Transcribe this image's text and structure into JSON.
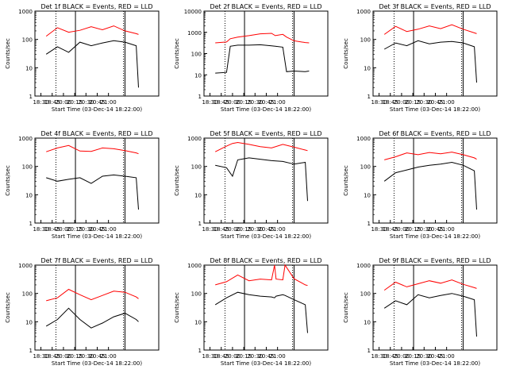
{
  "figure": {
    "ylabel": "Counts/sec",
    "xlabel": "Start Time (03-Dec-14 18:22:00)",
    "xticks": [
      "18:30",
      "18:45",
      "20:00",
      "20:15",
      "20:30",
      "20:45",
      "21:00"
    ],
    "yticks": [
      "1",
      "10",
      "100",
      "1000"
    ],
    "colors": {
      "events": "#000000",
      "lld": "#ff0000"
    }
  },
  "chart_data": [
    {
      "type": "line",
      "title": "Det 1f BLACK = Events, RED = LLD",
      "ylabel": "Counts/sec",
      "xlabel": "Start Time (03-Dec-14 18:22:00)",
      "yscale": "log",
      "ylim": [
        1,
        1000
      ],
      "x_minutes": [
        15,
        30,
        45,
        60,
        75,
        90,
        105,
        120,
        135,
        138
      ],
      "series": [
        {
          "name": "Events",
          "color": "#000000",
          "values": [
            30,
            55,
            35,
            80,
            60,
            75,
            90,
            80,
            60,
            2
          ]
        },
        {
          "name": "LLD",
          "color": "#ff0000",
          "values": [
            130,
            260,
            180,
            210,
            280,
            220,
            300,
            200,
            160,
            150
          ]
        }
      ]
    },
    {
      "type": "line",
      "title": "Det 2f BLACK = Events, RED = LLD",
      "ylabel": "Counts/sec",
      "xlabel": "Start Time (03-Dec-14 18:22:00)",
      "yscale": "log",
      "ylim": [
        1,
        10000
      ],
      "x_minutes": [
        15,
        30,
        35,
        45,
        60,
        75,
        90,
        95,
        105,
        110,
        120,
        135,
        140
      ],
      "series": [
        {
          "name": "Events",
          "color": "#000000",
          "values": [
            12,
            13,
            220,
            250,
            250,
            260,
            230,
            220,
            200,
            14,
            15,
            14,
            15
          ]
        },
        {
          "name": "LLD",
          "color": "#ff0000",
          "values": [
            320,
            350,
            500,
            600,
            700,
            850,
            900,
            700,
            800,
            600,
            400,
            330,
            320
          ]
        }
      ]
    },
    {
      "type": "line",
      "title": "Det 3f BLACK = Events, RED = LLD",
      "ylabel": "Counts/sec",
      "xlabel": "Start Time (03-Dec-14 18:22:00)",
      "yscale": "log",
      "ylim": [
        1,
        1000
      ],
      "x_minutes": [
        15,
        30,
        45,
        60,
        75,
        90,
        105,
        120,
        135,
        138
      ],
      "series": [
        {
          "name": "Events",
          "color": "#000000",
          "values": [
            45,
            75,
            60,
            90,
            70,
            80,
            85,
            75,
            55,
            3
          ]
        },
        {
          "name": "LLD",
          "color": "#ff0000",
          "values": [
            150,
            290,
            190,
            230,
            300,
            240,
            330,
            230,
            170,
            160
          ]
        }
      ]
    },
    {
      "type": "line",
      "title": "Det 4f BLACK = Events, RED = LLD",
      "ylabel": "Counts/sec",
      "xlabel": "Start Time (03-Dec-14 18:22:00)",
      "yscale": "log",
      "ylim": [
        1,
        1000
      ],
      "x_minutes": [
        15,
        30,
        45,
        60,
        75,
        90,
        105,
        120,
        135,
        138
      ],
      "series": [
        {
          "name": "Events",
          "color": "#000000",
          "values": [
            40,
            30,
            35,
            40,
            25,
            45,
            50,
            45,
            40,
            3
          ]
        },
        {
          "name": "LLD",
          "color": "#ff0000",
          "values": [
            330,
            450,
            550,
            350,
            340,
            450,
            420,
            360,
            300,
            280
          ]
        }
      ]
    },
    {
      "type": "line",
      "title": "Det 5f BLACK = Events, RED = LLD",
      "ylabel": "Counts/sec",
      "xlabel": "Start Time (03-Dec-14 18:22:00)",
      "yscale": "log",
      "ylim": [
        1,
        1000
      ],
      "x_minutes": [
        15,
        30,
        38,
        45,
        60,
        75,
        90,
        105,
        120,
        135,
        138
      ],
      "series": [
        {
          "name": "Events",
          "color": "#000000",
          "values": [
            110,
            90,
            45,
            170,
            200,
            180,
            160,
            150,
            120,
            140,
            6
          ]
        },
        {
          "name": "LLD",
          "color": "#ff0000",
          "values": [
            330,
            520,
            650,
            700,
            600,
            500,
            450,
            600,
            480,
            380,
            360
          ]
        }
      ]
    },
    {
      "type": "line",
      "title": "Det 6f BLACK = Events, RED = LLD",
      "ylabel": "Counts/sec",
      "xlabel": "Start Time (03-Dec-14 18:22:00)",
      "yscale": "log",
      "ylim": [
        1,
        1000
      ],
      "x_minutes": [
        15,
        30,
        45,
        60,
        75,
        90,
        105,
        120,
        135,
        138
      ],
      "series": [
        {
          "name": "Events",
          "color": "#000000",
          "values": [
            30,
            60,
            75,
            95,
            110,
            120,
            140,
            110,
            70,
            3
          ]
        },
        {
          "name": "LLD",
          "color": "#ff0000",
          "values": [
            170,
            220,
            300,
            260,
            310,
            280,
            320,
            260,
            200,
            180
          ]
        }
      ]
    },
    {
      "type": "line",
      "title": "Det 7f BLACK = Events, RED = LLD",
      "ylabel": "Counts/sec",
      "xlabel": "Start Time (03-Dec-14 18:22:00)",
      "yscale": "log",
      "ylim": [
        1,
        1000
      ],
      "x_minutes": [
        15,
        30,
        45,
        60,
        75,
        90,
        105,
        120,
        135,
        138
      ],
      "series": [
        {
          "name": "Events",
          "color": "#000000",
          "values": [
            7,
            12,
            30,
            12,
            6,
            9,
            15,
            20,
            12,
            10
          ]
        },
        {
          "name": "LLD",
          "color": "#ff0000",
          "values": [
            55,
            70,
            140,
            90,
            60,
            85,
            120,
            110,
            75,
            65
          ]
        }
      ]
    },
    {
      "type": "line",
      "title": "Det 8f BLACK = Events, RED = LLD",
      "ylabel": "Counts/sec",
      "xlabel": "Start Time (03-Dec-14 18:22:00)",
      "yscale": "log",
      "ylim": [
        1,
        1000
      ],
      "x_minutes": [
        15,
        30,
        45,
        60,
        75,
        90,
        94,
        96,
        105,
        108,
        120,
        135,
        138
      ],
      "series": [
        {
          "name": "Events",
          "color": "#000000",
          "values": [
            40,
            70,
            110,
            90,
            80,
            75,
            70,
            80,
            90,
            85,
            60,
            40,
            4
          ]
        },
        {
          "name": "LLD",
          "color": "#ff0000",
          "values": [
            200,
            260,
            450,
            280,
            320,
            300,
            1000,
            320,
            300,
            1000,
            330,
            200,
            190
          ]
        }
      ]
    },
    {
      "type": "line",
      "title": "Det 9f BLACK = Events, RED = LLD",
      "ylabel": "Counts/sec",
      "xlabel": "Start Time (03-Dec-14 18:22:00)",
      "yscale": "log",
      "ylim": [
        1,
        1000
      ],
      "x_minutes": [
        15,
        30,
        45,
        60,
        75,
        90,
        105,
        120,
        135,
        138
      ],
      "series": [
        {
          "name": "Events",
          "color": "#000000",
          "values": [
            30,
            55,
            40,
            90,
            70,
            85,
            100,
            80,
            60,
            3
          ]
        },
        {
          "name": "LLD",
          "color": "#ff0000",
          "values": [
            130,
            250,
            170,
            220,
            280,
            230,
            300,
            210,
            160,
            150
          ]
        }
      ]
    }
  ]
}
